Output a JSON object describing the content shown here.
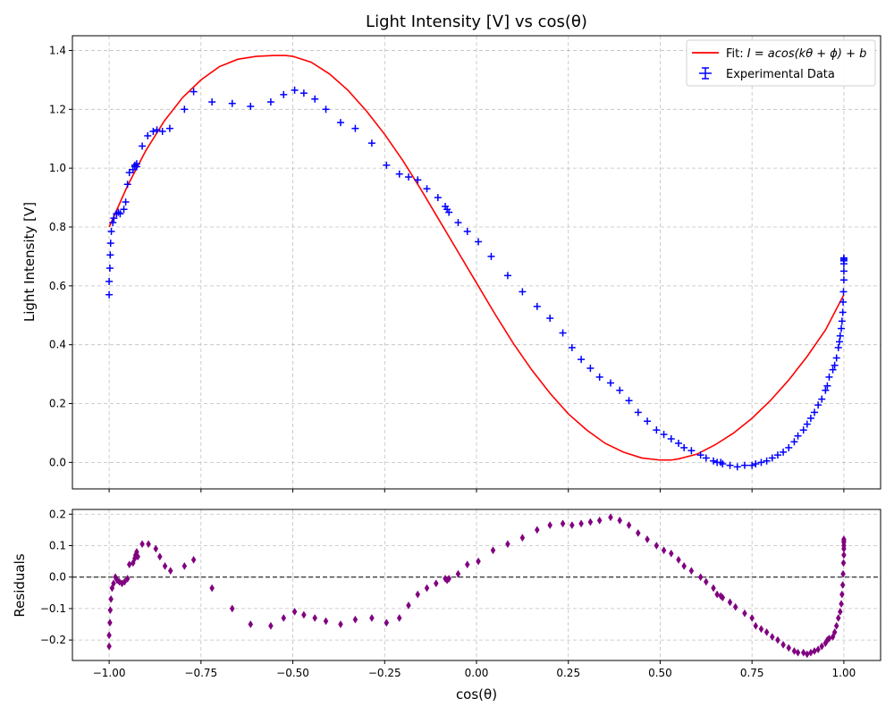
{
  "colors": {
    "fit": "#ff0000",
    "data": "#0000ff",
    "residuals": "#800080",
    "zero_line": "#000000"
  },
  "chart_data": [
    {
      "type": "line",
      "title": "Light Intensity [V] vs cos(θ)",
      "xlabel": "",
      "ylabel": "Light Intensity [V]",
      "xlim": [
        -1.1,
        1.1
      ],
      "ylim": [
        -0.09,
        1.45
      ],
      "xticks": [
        -1.0,
        -0.75,
        -0.5,
        -0.25,
        0.0,
        0.25,
        0.5,
        0.75,
        1.0
      ],
      "xtick_labels": [
        "",
        "",
        "",
        "",
        "",
        "",
        "",
        "",
        ""
      ],
      "yticks": [
        0.0,
        0.2,
        0.4,
        0.6,
        0.8,
        1.0,
        1.2,
        1.4
      ],
      "ytick_labels": [
        "0.0",
        "0.2",
        "0.4",
        "0.6",
        "0.8",
        "1.0",
        "1.2",
        "1.4"
      ],
      "grid": true,
      "legend": "top-right",
      "series": [
        {
          "name": "Fit: I = acos(kθ + ϕ) + b",
          "kind": "line",
          "x": [
            -1.0,
            -0.95,
            -0.9,
            -0.85,
            -0.8,
            -0.75,
            -0.7,
            -0.65,
            -0.6,
            -0.55,
            -0.52,
            -0.5,
            -0.45,
            -0.4,
            -0.35,
            -0.3,
            -0.25,
            -0.2,
            -0.15,
            -0.1,
            -0.05,
            0.0,
            0.05,
            0.1,
            0.15,
            0.2,
            0.25,
            0.3,
            0.35,
            0.4,
            0.45,
            0.5,
            0.53,
            0.55,
            0.6,
            0.65,
            0.7,
            0.75,
            0.8,
            0.85,
            0.9,
            0.95,
            1.0
          ],
          "y": [
            0.8,
            0.94,
            1.06,
            1.16,
            1.24,
            1.3,
            1.345,
            1.37,
            1.38,
            1.383,
            1.383,
            1.38,
            1.36,
            1.32,
            1.265,
            1.195,
            1.115,
            1.025,
            0.925,
            0.82,
            0.715,
            0.61,
            0.505,
            0.405,
            0.315,
            0.235,
            0.165,
            0.11,
            0.065,
            0.035,
            0.015,
            0.008,
            0.008,
            0.012,
            0.028,
            0.06,
            0.1,
            0.15,
            0.21,
            0.28,
            0.36,
            0.45,
            0.57
          ]
        },
        {
          "name": "Experimental Data",
          "kind": "errorbar",
          "x": [
            -1.0,
            -1.0,
            -0.998,
            -0.997,
            -0.996,
            -0.994,
            -0.99,
            -0.987,
            -0.98,
            -0.975,
            -0.97,
            -0.96,
            -0.955,
            -0.95,
            -0.945,
            -0.935,
            -0.93,
            -0.93,
            -0.925,
            -0.925,
            -0.91,
            -0.895,
            -0.88,
            -0.87,
            -0.855,
            -0.835,
            -0.795,
            -0.77,
            -0.72,
            -0.665,
            -0.615,
            -0.56,
            -0.525,
            -0.495,
            -0.47,
            -0.44,
            -0.41,
            -0.37,
            -0.33,
            -0.285,
            -0.245,
            -0.21,
            -0.185,
            -0.16,
            -0.135,
            -0.105,
            -0.085,
            -0.08,
            -0.075,
            -0.05,
            -0.025,
            0.005,
            0.04,
            0.085,
            0.125,
            0.165,
            0.2,
            0.235,
            0.26,
            0.285,
            0.31,
            0.335,
            0.365,
            0.39,
            0.415,
            0.44,
            0.465,
            0.49,
            0.51,
            0.53,
            0.55,
            0.565,
            0.585,
            0.61,
            0.625,
            0.645,
            0.655,
            0.665,
            0.67,
            0.69,
            0.71,
            0.73,
            0.75,
            0.76,
            0.775,
            0.79,
            0.805,
            0.82,
            0.835,
            0.85,
            0.865,
            0.875,
            0.89,
            0.9,
            0.91,
            0.92,
            0.93,
            0.94,
            0.95,
            0.955,
            0.96,
            0.97,
            0.975,
            0.98,
            0.985,
            0.988,
            0.99,
            0.993,
            0.995,
            0.997,
            0.998,
            0.999,
            1.0,
            1.0,
            1.0,
            1.0,
            1.0,
            1.0
          ],
          "y": [
            0.57,
            0.615,
            0.66,
            0.705,
            0.745,
            0.785,
            0.815,
            0.83,
            0.845,
            0.85,
            0.845,
            0.86,
            0.885,
            0.945,
            0.985,
            0.995,
            1.005,
            1.01,
            1.015,
            1.005,
            1.075,
            1.11,
            1.125,
            1.13,
            1.125,
            1.135,
            1.2,
            1.26,
            1.225,
            1.22,
            1.21,
            1.225,
            1.25,
            1.265,
            1.255,
            1.235,
            1.2,
            1.155,
            1.135,
            1.085,
            1.01,
            0.98,
            0.97,
            0.96,
            0.93,
            0.9,
            0.87,
            0.86,
            0.85,
            0.815,
            0.785,
            0.75,
            0.7,
            0.635,
            0.58,
            0.53,
            0.49,
            0.44,
            0.39,
            0.35,
            0.32,
            0.29,
            0.27,
            0.245,
            0.21,
            0.17,
            0.14,
            0.11,
            0.095,
            0.08,
            0.065,
            0.05,
            0.04,
            0.025,
            0.015,
            0.005,
            0.0,
            0.0,
            -0.005,
            -0.01,
            -0.015,
            -0.01,
            -0.01,
            -0.005,
            0.0,
            0.005,
            0.015,
            0.025,
            0.035,
            0.05,
            0.07,
            0.09,
            0.11,
            0.13,
            0.15,
            0.17,
            0.195,
            0.215,
            0.245,
            0.26,
            0.29,
            0.315,
            0.33,
            0.355,
            0.39,
            0.41,
            0.43,
            0.455,
            0.48,
            0.51,
            0.545,
            0.58,
            0.62,
            0.65,
            0.675,
            0.685,
            0.69,
            0.695
          ]
        }
      ]
    },
    {
      "type": "scatter",
      "title": "",
      "xlabel": "cos(θ)",
      "ylabel": "Residuals",
      "xlim": [
        -1.1,
        1.1
      ],
      "ylim": [
        -0.265,
        0.215
      ],
      "xticks": [
        -1.0,
        -0.75,
        -0.5,
        -0.25,
        0.0,
        0.25,
        0.5,
        0.75,
        1.0
      ],
      "xtick_labels": [
        "−1.00",
        "−0.75",
        "−0.50",
        "−0.25",
        "0.00",
        "0.25",
        "0.50",
        "0.75",
        "1.00"
      ],
      "yticks": [
        -0.2,
        -0.1,
        0.0,
        0.1,
        0.2
      ],
      "ytick_labels": [
        "−0.2",
        "−0.1",
        "0.0",
        "0.1",
        "0.2"
      ],
      "grid": true,
      "reference_line_y": 0.0,
      "series": [
        {
          "kind": "scatter",
          "x": [
            -1.0,
            -1.0,
            -0.998,
            -0.997,
            -0.995,
            -0.992,
            -0.988,
            -0.983,
            -0.978,
            -0.972,
            -0.965,
            -0.958,
            -0.95,
            -0.945,
            -0.935,
            -0.93,
            -0.928,
            -0.925,
            -0.922,
            -0.91,
            -0.893,
            -0.873,
            -0.862,
            -0.848,
            -0.833,
            -0.795,
            -0.77,
            -0.72,
            -0.665,
            -0.615,
            -0.56,
            -0.525,
            -0.495,
            -0.47,
            -0.44,
            -0.41,
            -0.37,
            -0.33,
            -0.285,
            -0.245,
            -0.21,
            -0.185,
            -0.16,
            -0.135,
            -0.11,
            -0.085,
            -0.08,
            -0.075,
            -0.05,
            -0.025,
            0.005,
            0.045,
            0.085,
            0.125,
            0.165,
            0.2,
            0.235,
            0.26,
            0.285,
            0.31,
            0.335,
            0.365,
            0.39,
            0.415,
            0.44,
            0.465,
            0.49,
            0.51,
            0.53,
            0.55,
            0.565,
            0.585,
            0.61,
            0.625,
            0.645,
            0.655,
            0.665,
            0.67,
            0.69,
            0.705,
            0.73,
            0.75,
            0.76,
            0.775,
            0.79,
            0.805,
            0.82,
            0.835,
            0.85,
            0.865,
            0.875,
            0.89,
            0.9,
            0.91,
            0.92,
            0.93,
            0.94,
            0.95,
            0.955,
            0.96,
            0.97,
            0.975,
            0.98,
            0.985,
            0.99,
            0.993,
            0.995,
            0.997,
            0.998,
            0.999,
            1.0,
            1.0,
            1.0,
            1.0,
            1.0,
            1.0
          ],
          "y": [
            -0.22,
            -0.185,
            -0.145,
            -0.105,
            -0.07,
            -0.035,
            -0.02,
            0.0,
            -0.01,
            -0.015,
            -0.02,
            -0.015,
            -0.005,
            0.04,
            0.045,
            0.06,
            0.07,
            0.08,
            0.065,
            0.105,
            0.105,
            0.09,
            0.065,
            0.035,
            0.02,
            0.035,
            0.055,
            -0.035,
            -0.1,
            -0.15,
            -0.155,
            -0.13,
            -0.11,
            -0.12,
            -0.13,
            -0.14,
            -0.15,
            -0.135,
            -0.13,
            -0.145,
            -0.13,
            -0.09,
            -0.055,
            -0.035,
            -0.02,
            -0.005,
            -0.01,
            -0.005,
            0.01,
            0.04,
            0.05,
            0.085,
            0.105,
            0.125,
            0.15,
            0.165,
            0.17,
            0.165,
            0.17,
            0.175,
            0.18,
            0.19,
            0.18,
            0.165,
            0.14,
            0.12,
            0.1,
            0.085,
            0.075,
            0.055,
            0.035,
            0.02,
            0.0,
            -0.015,
            -0.035,
            -0.055,
            -0.06,
            -0.065,
            -0.08,
            -0.095,
            -0.115,
            -0.13,
            -0.155,
            -0.165,
            -0.175,
            -0.19,
            -0.2,
            -0.215,
            -0.225,
            -0.235,
            -0.24,
            -0.24,
            -0.245,
            -0.24,
            -0.235,
            -0.23,
            -0.22,
            -0.21,
            -0.2,
            -0.195,
            -0.19,
            -0.175,
            -0.155,
            -0.13,
            -0.11,
            -0.085,
            -0.055,
            -0.025,
            0.01,
            0.045,
            0.07,
            0.09,
            0.1,
            0.11,
            0.115,
            0.12
          ]
        }
      ]
    }
  ],
  "legend": {
    "fit_label_prefix": "Fit: ",
    "fit_label_formula": "I = acos(kθ + ϕ) + b",
    "data_label": "Experimental Data"
  }
}
